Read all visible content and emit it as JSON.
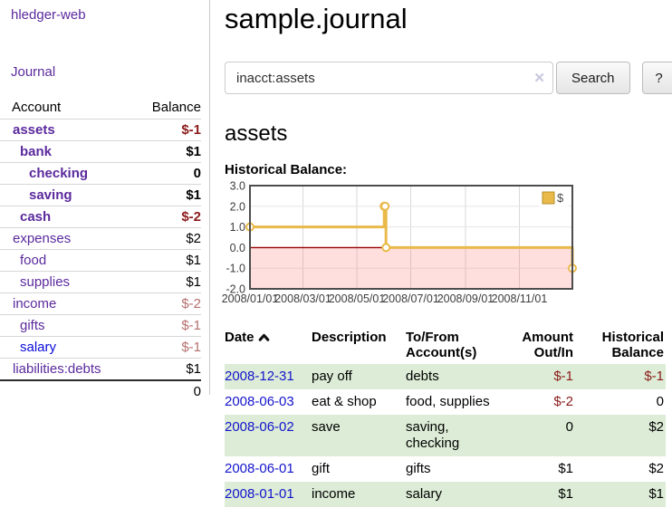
{
  "app": {
    "brand": "hledger-web",
    "nav_journal": "Journal"
  },
  "sidebar": {
    "accounts_header": {
      "account": "Account",
      "balance": "Balance"
    },
    "rows": [
      {
        "name": "assets",
        "balance": "$-1",
        "depth": 1,
        "emph": true,
        "link_color": "purple",
        "balance_style": "neg-strong"
      },
      {
        "name": "bank",
        "balance": "$1",
        "depth": 2,
        "emph": true,
        "link_color": "purple",
        "balance_style": "pos"
      },
      {
        "name": "checking",
        "balance": "0",
        "depth": 3,
        "emph": true,
        "link_color": "purple",
        "balance_style": "pos"
      },
      {
        "name": "saving",
        "balance": "$1",
        "depth": 3,
        "emph": true,
        "link_color": "purple",
        "balance_style": "pos"
      },
      {
        "name": "cash",
        "balance": "$-2",
        "depth": 2,
        "emph": true,
        "link_color": "purple",
        "balance_style": "neg-strong"
      },
      {
        "name": "expenses",
        "balance": "$2",
        "depth": 1,
        "emph": false,
        "link_color": "purple",
        "balance_style": "pos"
      },
      {
        "name": "food",
        "balance": "$1",
        "depth": 2,
        "emph": false,
        "link_color": "purple",
        "balance_style": "pos"
      },
      {
        "name": "supplies",
        "balance": "$1",
        "depth": 2,
        "emph": false,
        "link_color": "purple",
        "balance_style": "pos"
      },
      {
        "name": "income",
        "balance": "$-2",
        "depth": 1,
        "emph": false,
        "link_color": "purple",
        "balance_style": "neg-dim"
      },
      {
        "name": "gifts",
        "balance": "$-1",
        "depth": 2,
        "emph": false,
        "link_color": "purple",
        "balance_style": "neg-dim"
      },
      {
        "name": "salary",
        "balance": "$-1",
        "depth": 2,
        "emph": false,
        "link_color": "blue",
        "balance_style": "neg-dim"
      },
      {
        "name": "liabilities:debts",
        "balance": "$1",
        "depth": 1,
        "emph": false,
        "link_color": "purple",
        "balance_style": "pos"
      }
    ],
    "total": "0"
  },
  "header": {
    "title": "sample.journal"
  },
  "search": {
    "value": "inacct:assets",
    "clear_icon": "✕",
    "button_label": "Search",
    "help_label": "?"
  },
  "account_page": {
    "title": "assets",
    "chart_label": "Historical Balance:"
  },
  "chart_data": {
    "type": "line",
    "step": true,
    "series": [
      {
        "name": "$",
        "color": "#e9b949",
        "points": [
          {
            "date": "2008-01-01",
            "value": 1
          },
          {
            "date": "2008-06-01",
            "value": 2
          },
          {
            "date": "2008-06-02",
            "value": 2
          },
          {
            "date": "2008-06-03",
            "value": 0
          },
          {
            "date": "2008-12-31",
            "value": -1
          }
        ]
      }
    ],
    "x_ticks": [
      "2008/01/01",
      "2008/03/01",
      "2008/05/01",
      "2008/07/01",
      "2008/09/01",
      "2008/11/01"
    ],
    "y_ticks": [
      "3.0",
      "2.0",
      "1.0",
      "0.0",
      "-1.0",
      "-2.0"
    ],
    "xlim": [
      "2008-01-01",
      "2008-12-31"
    ],
    "ylim": [
      -2,
      3
    ],
    "grid": true,
    "negative_region": true,
    "zero_line_color": "#9a0000",
    "legend": {
      "label": "$",
      "position": "top-right"
    }
  },
  "register": {
    "columns": [
      {
        "label": "Date",
        "sorted": "ascending"
      },
      {
        "label": "Description"
      },
      {
        "label": "To/From\nAccount(s)"
      },
      {
        "label": "Amount\nOut/In"
      },
      {
        "label": "Historical\nBalance"
      }
    ],
    "rows": [
      {
        "date": "2008-12-31",
        "description": "pay off",
        "accounts": "debts",
        "amount": "$-1",
        "amount_negative": true,
        "balance": "$-1",
        "balance_negative": true
      },
      {
        "date": "2008-06-03",
        "description": "eat & shop",
        "accounts": "food, supplies",
        "amount": "$-2",
        "amount_negative": true,
        "balance": "0",
        "balance_negative": false
      },
      {
        "date": "2008-06-02",
        "description": "save",
        "accounts": "saving,\nchecking",
        "amount": "0",
        "amount_negative": false,
        "balance": "$2",
        "balance_negative": false
      },
      {
        "date": "2008-06-01",
        "description": "gift",
        "accounts": "gifts",
        "amount": "$1",
        "amount_negative": false,
        "balance": "$2",
        "balance_negative": false
      },
      {
        "date": "2008-01-01",
        "description": "income",
        "accounts": "salary",
        "amount": "$1",
        "amount_negative": false,
        "balance": "$1",
        "balance_negative": false
      }
    ]
  }
}
